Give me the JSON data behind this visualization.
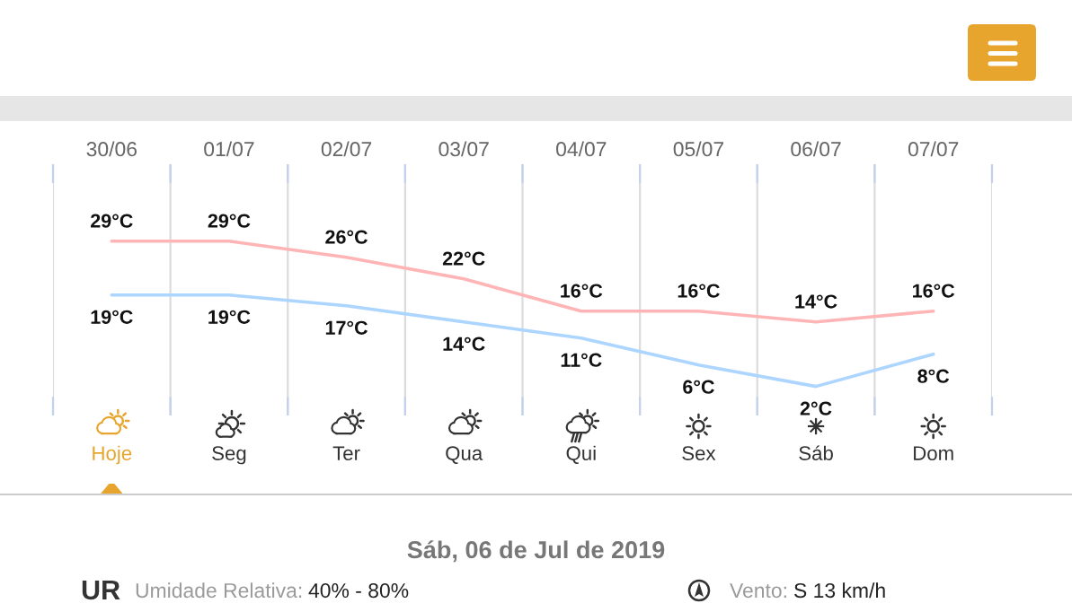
{
  "chart_data": {
    "type": "line",
    "categories": [
      "30/06",
      "01/07",
      "02/07",
      "03/07",
      "04/07",
      "05/07",
      "06/07",
      "07/07"
    ],
    "series": [
      {
        "color": "#ffb5b5",
        "values": [
          29,
          29,
          26,
          22,
          16,
          16,
          14,
          16
        ],
        "value_labels": [
          "29°C",
          "29°C",
          "26°C",
          "22°C",
          "16°C",
          "16°C",
          "14°C",
          "16°C"
        ]
      },
      {
        "color": "#acd5ff",
        "values": [
          19,
          19,
          17,
          14,
          11,
          6,
          2,
          8
        ],
        "value_labels": [
          "19°C",
          "19°C",
          "17°C",
          "14°C",
          "11°C",
          "6°C",
          "2°C",
          "8°C"
        ]
      }
    ],
    "grid": "x",
    "tick_labels": "x",
    "annotations": [
      "Hoje",
      "Seg",
      "Ter",
      "Qua",
      "Qui",
      "Sex",
      "Sáb",
      "Dom",
      "Sáb, 06 de Jul de 2019",
      "UR",
      "Umidade Relativa:",
      "40% - 80%",
      "Vento:",
      "S 13 km/h"
    ]
  }
}
